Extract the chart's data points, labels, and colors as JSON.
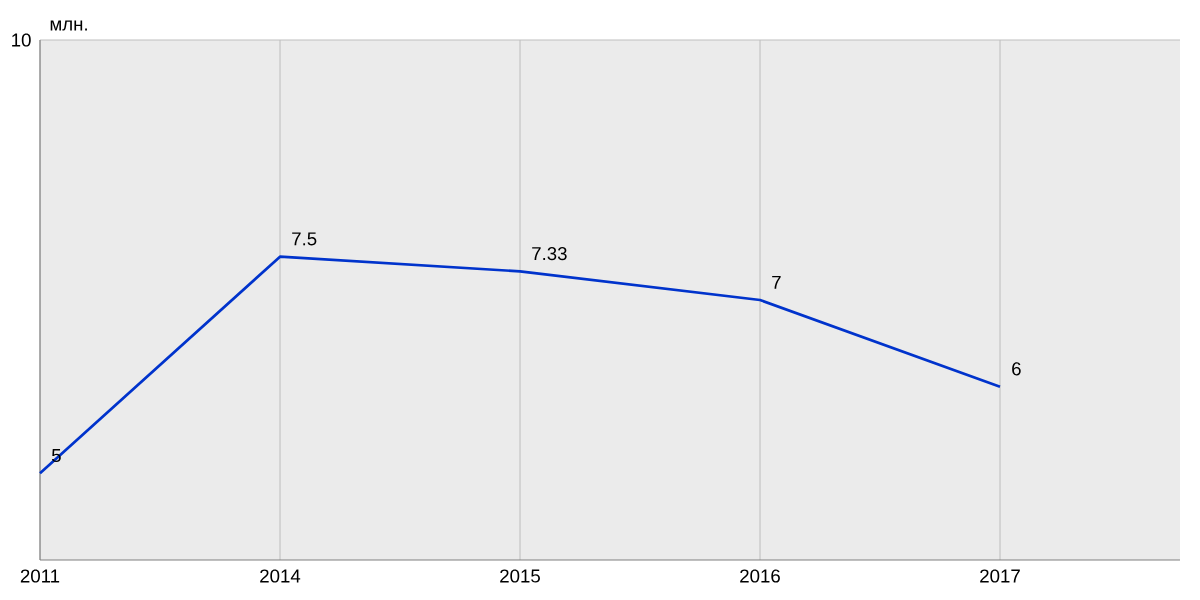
{
  "chart_data": {
    "type": "line",
    "ylabel": "млн.",
    "categories": [
      "2011",
      "2014",
      "2015",
      "2016",
      "2017"
    ],
    "values": [
      5,
      7.5,
      7.33,
      7,
      6
    ],
    "color": "#0033cc",
    "ylim": [
      4,
      10
    ],
    "annotations": [
      "10"
    ],
    "grid": true,
    "data_labels": true,
    "marker": "none",
    "line_style": "solid"
  }
}
